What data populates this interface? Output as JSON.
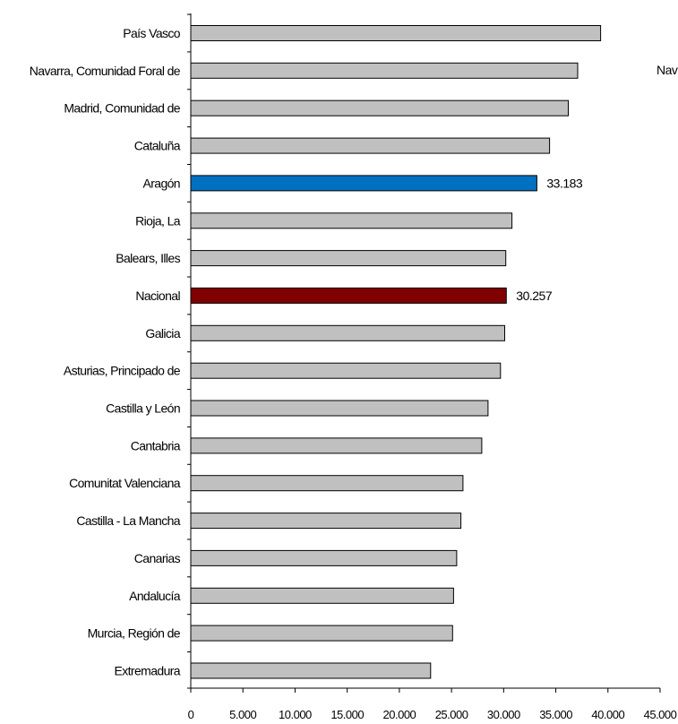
{
  "chart_data": {
    "type": "bar",
    "orientation": "horizontal",
    "categories": [
      "País Vasco",
      "Navarra, Comunidad Foral de",
      "Madrid, Comunidad de",
      "Cataluña",
      "Aragón",
      "Rioja, La",
      "Balears, Illes",
      "Nacional",
      "Galicia",
      "Asturias, Principado de",
      "Castilla y León",
      "Cantabria",
      "Comunitat Valenciana",
      "Castilla - La Mancha",
      "Canarias",
      "Andalucía",
      "Murcia, Región de",
      "Extremadura"
    ],
    "values": [
      39300,
      37100,
      36200,
      34400,
      33183,
      30800,
      30200,
      30257,
      30100,
      29700,
      28500,
      27900,
      26100,
      25900,
      25500,
      25200,
      25100,
      23000
    ],
    "bar_colors": [
      "#c0c0c0",
      "#c0c0c0",
      "#c0c0c0",
      "#c0c0c0",
      "#0070c0",
      "#c0c0c0",
      "#c0c0c0",
      "#800000",
      "#c0c0c0",
      "#c0c0c0",
      "#c0c0c0",
      "#c0c0c0",
      "#c0c0c0",
      "#c0c0c0",
      "#c0c0c0",
      "#c0c0c0",
      "#c0c0c0",
      "#c0c0c0"
    ],
    "data_labels": [
      {
        "category_index": 4,
        "text": "33.183"
      },
      {
        "category_index": 7,
        "text": "30.257"
      }
    ],
    "xlim": [
      0,
      45000
    ],
    "x_ticks": [
      0,
      5000,
      10000,
      15000,
      20000,
      25000,
      30000,
      35000,
      40000,
      45000
    ],
    "x_tick_labels": [
      "0",
      "5.000",
      "10.000",
      "15.000",
      "20.000",
      "25.000",
      "30.000",
      "35.000",
      "40.000",
      "45.000"
    ],
    "side_label": "Nav",
    "grid": false,
    "legend": "none",
    "title": "",
    "xlabel": "",
    "ylabel": ""
  }
}
